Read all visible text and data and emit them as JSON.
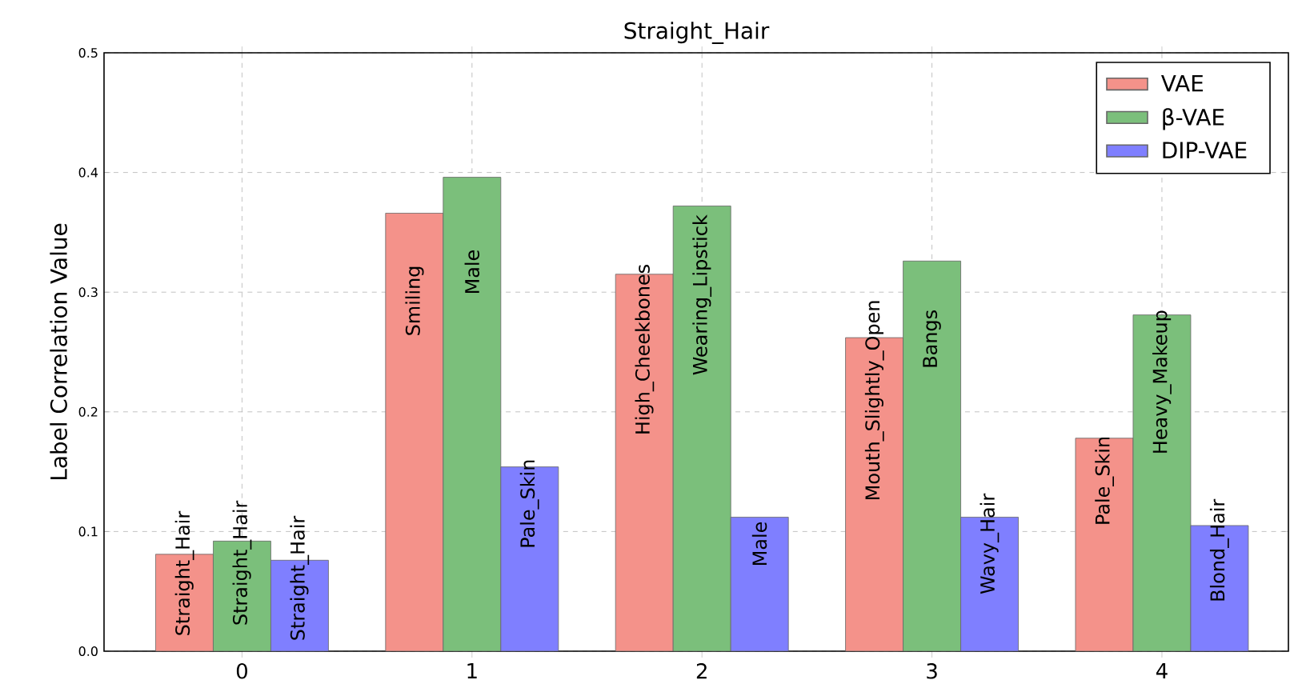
{
  "chart_data": {
    "type": "bar",
    "title": "Straight_Hair",
    "ylabel": "Label Correlation Value",
    "categories": [
      "0",
      "1",
      "2",
      "3",
      "4"
    ],
    "series": [
      {
        "name": "VAE",
        "color": "#f4928a",
        "values": [
          0.081,
          0.366,
          0.315,
          0.262,
          0.178
        ],
        "value_labels": [
          "Straight_Hair",
          "Smiling",
          "High_Cheekbones",
          "Mouth_Slightly_Open",
          "Pale_Skin"
        ]
      },
      {
        "name": "β-VAE",
        "color": "#7bbf7b",
        "values": [
          0.092,
          0.396,
          0.372,
          0.326,
          0.281
        ],
        "value_labels": [
          "Straight_Hair",
          "Male",
          "Wearing_Lipstick",
          "Bangs",
          "Heavy_Makeup"
        ]
      },
      {
        "name": "DIP-VAE",
        "color": "#7f7fff",
        "values": [
          0.076,
          0.154,
          0.112,
          0.112,
          0.105
        ],
        "value_labels": [
          "Straight_Hair",
          "Pale_Skin",
          "Male",
          "Wavy_Hair",
          "Blond_Hair"
        ]
      }
    ],
    "ylim": [
      0,
      0.5
    ],
    "yticks": [
      {
        "value": 0,
        "label": "0.0"
      },
      {
        "value": 0.1,
        "label": "0.1"
      },
      {
        "value": 0.2,
        "label": "0.2"
      },
      {
        "value": 0.3,
        "label": "0.3"
      },
      {
        "value": 0.4,
        "label": "0.4"
      },
      {
        "value": 0.5,
        "label": "0.5"
      }
    ],
    "grid": true,
    "legend": "top right"
  }
}
